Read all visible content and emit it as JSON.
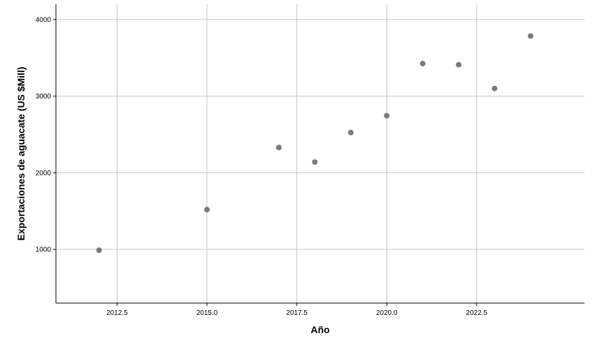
{
  "chart_data": {
    "type": "scatter",
    "title": "",
    "xlabel": "Año",
    "ylabel": "Exportaciones de aguacate (US $Mill)",
    "xlim": [
      2010.8,
      2025.5
    ],
    "ylim": [
      300,
      4200
    ],
    "x_ticks": [
      "2012.5",
      "2015.0",
      "2017.5",
      "2020.0",
      "2022.5"
    ],
    "x_tick_values": [
      2012.5,
      2015.0,
      2017.5,
      2020.0,
      2022.5
    ],
    "y_ticks": [
      "1000",
      "2000",
      "3000",
      "4000"
    ],
    "y_tick_values": [
      1000,
      2000,
      3000,
      4000
    ],
    "grid": true,
    "legend": "none",
    "marker_color": "#7a7a7a",
    "points": [
      {
        "x": 2012,
        "y": 990
      },
      {
        "x": 2015,
        "y": 1520
      },
      {
        "x": 2017,
        "y": 2330
      },
      {
        "x": 2018,
        "y": 2140
      },
      {
        "x": 2019,
        "y": 2525
      },
      {
        "x": 2020,
        "y": 2745
      },
      {
        "x": 2021,
        "y": 3425
      },
      {
        "x": 2022,
        "y": 3410
      },
      {
        "x": 2023,
        "y": 3100
      },
      {
        "x": 2024,
        "y": 3785
      }
    ]
  }
}
